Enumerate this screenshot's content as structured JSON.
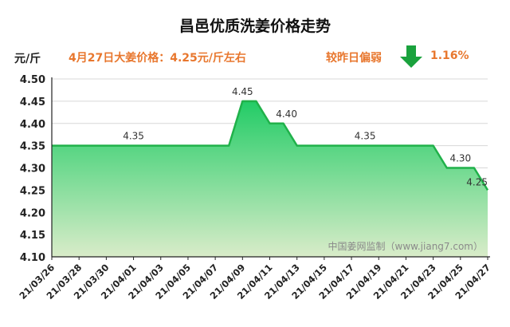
{
  "chart_data": {
    "type": "area",
    "title": "昌邑优质洗姜价格走势",
    "ylabel": "元/斤",
    "ylim": [
      4.1,
      4.5
    ],
    "yticks": [
      "4.10",
      "4.15",
      "4.20",
      "4.25",
      "4.30",
      "4.35",
      "4.40",
      "4.45",
      "4.50"
    ],
    "x": [
      "21/03/26",
      "21/03/27",
      "21/03/28",
      "21/03/29",
      "21/03/30",
      "21/03/31",
      "21/04/01",
      "21/04/02",
      "21/04/03",
      "21/04/04",
      "21/04/05",
      "21/04/06",
      "21/04/07",
      "21/04/08",
      "21/04/09",
      "21/04/10",
      "21/04/11",
      "21/04/12",
      "21/04/13",
      "21/04/14",
      "21/04/15",
      "21/04/16",
      "21/04/17",
      "21/04/18",
      "21/04/19",
      "21/04/20",
      "21/04/21",
      "21/04/22",
      "21/04/23",
      "21/04/24",
      "21/04/25",
      "21/04/26",
      "21/04/27"
    ],
    "xtick_labels": [
      "21/03/26",
      "21/03/28",
      "21/03/30",
      "21/04/01",
      "21/04/03",
      "21/04/05",
      "21/04/07",
      "21/04/09",
      "21/04/11",
      "21/04/13",
      "21/04/15",
      "21/04/17",
      "21/04/19",
      "21/04/21",
      "21/04/23",
      "21/04/25",
      "21/04/27"
    ],
    "values": [
      4.35,
      4.35,
      4.35,
      4.35,
      4.35,
      4.35,
      4.35,
      4.35,
      4.35,
      4.35,
      4.35,
      4.35,
      4.35,
      4.35,
      4.45,
      4.45,
      4.4,
      4.4,
      4.35,
      4.35,
      4.35,
      4.35,
      4.35,
      4.35,
      4.35,
      4.35,
      4.35,
      4.35,
      4.35,
      4.3,
      4.3,
      4.3,
      4.25
    ],
    "data_labels": [
      {
        "index": 6,
        "text": "4.35"
      },
      {
        "index": 14,
        "text": "4.45"
      },
      {
        "index": 17,
        "text": "4.40"
      },
      {
        "index": 23,
        "text": "4.35"
      },
      {
        "index": 30,
        "text": "4.30"
      },
      {
        "index": 32,
        "text": "4.25"
      }
    ],
    "grid": true,
    "colors": {
      "line": "#20b14a",
      "fill_top": "#22cc66",
      "fill_bottom": "#d9ecc9",
      "grid": "#d8d8d8",
      "arrow": "#1aa23d"
    }
  },
  "header": {
    "price_text": "4月27日大姜价格：4.25元/斤左右",
    "change_label": "较昨日偏弱",
    "change_pct": "1.16%",
    "change_icon": "down-arrow-icon"
  },
  "watermark": "中国姜网监制（www.jiang7.com）"
}
